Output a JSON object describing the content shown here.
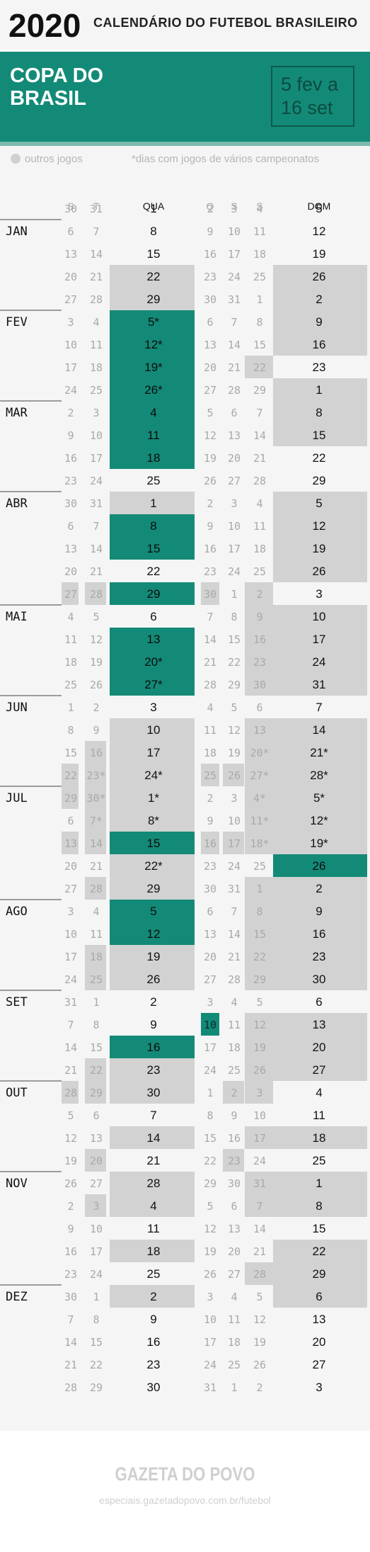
{
  "header": {
    "year": "2020",
    "subtitle": "CALENDÁRIO DO FUTEBOL BRASILEIRO"
  },
  "competition": {
    "name_line1": "COPA DO",
    "name_line2": "BRASIL",
    "dates_line1": "5 fev a",
    "dates_line2": "16 set"
  },
  "legend": {
    "other_games": "outros jogos",
    "note": "*dias com jogos de vários campeonatos"
  },
  "colors": {
    "highlight": "#138a77",
    "other": "#d2d2d2",
    "background": "#f5f5f5",
    "text": "#111111",
    "muted": "#a9a9a9"
  },
  "day_headers": [
    "S",
    "T",
    "QUA",
    "Q",
    "S",
    "S",
    "DOM"
  ],
  "months": [
    {
      "label": "JAN",
      "row": 1
    },
    {
      "label": "FEV",
      "row": 5
    },
    {
      "label": "MAR",
      "row": 9
    },
    {
      "label": "ABR",
      "row": 13
    },
    {
      "label": "MAI",
      "row": 18
    },
    {
      "label": "JUN",
      "row": 22
    },
    {
      "label": "JUL",
      "row": 26
    },
    {
      "label": "AGO",
      "row": 31
    },
    {
      "label": "SET",
      "row": 35
    },
    {
      "label": "OUT",
      "row": 39
    },
    {
      "label": "NOV",
      "row": 43
    },
    {
      "label": "DEZ",
      "row": 48
    }
  ],
  "weeks": [
    {
      "days": [
        "30",
        "31",
        "1",
        "2",
        "3",
        "4",
        "5"
      ],
      "marks": [
        "",
        "",
        "",
        "",
        "",
        "",
        ""
      ]
    },
    {
      "days": [
        "6",
        "7",
        "8",
        "9",
        "10",
        "11",
        "12"
      ],
      "marks": [
        "",
        "",
        "",
        "",
        "",
        "",
        ""
      ]
    },
    {
      "days": [
        "13",
        "14",
        "15",
        "16",
        "17",
        "18",
        "19"
      ],
      "marks": [
        "",
        "",
        "",
        "",
        "",
        "",
        ""
      ]
    },
    {
      "days": [
        "20",
        "21",
        "22",
        "23",
        "24",
        "25",
        "26"
      ],
      "marks": [
        "",
        "",
        "o",
        "",
        "",
        "",
        "o"
      ]
    },
    {
      "days": [
        "27",
        "28",
        "29",
        "30",
        "31",
        "1",
        "2"
      ],
      "marks": [
        "",
        "",
        "o",
        "",
        "",
        "",
        "o"
      ]
    },
    {
      "days": [
        "3",
        "4",
        "5*",
        "6",
        "7",
        "8",
        "9"
      ],
      "marks": [
        "",
        "",
        "c",
        "",
        "",
        "",
        "o"
      ]
    },
    {
      "days": [
        "10",
        "11",
        "12*",
        "13",
        "14",
        "15",
        "16"
      ],
      "marks": [
        "",
        "",
        "c",
        "",
        "",
        "",
        "o"
      ]
    },
    {
      "days": [
        "17",
        "18",
        "19*",
        "20",
        "21",
        "22",
        "23"
      ],
      "marks": [
        "",
        "",
        "c",
        "",
        "",
        "o",
        ""
      ]
    },
    {
      "days": [
        "24",
        "25",
        "26*",
        "27",
        "28",
        "29",
        "1"
      ],
      "marks": [
        "",
        "",
        "c",
        "",
        "",
        "",
        "o"
      ]
    },
    {
      "days": [
        "2",
        "3",
        "4",
        "5",
        "6",
        "7",
        "8"
      ],
      "marks": [
        "",
        "",
        "c",
        "",
        "",
        "",
        "o"
      ]
    },
    {
      "days": [
        "9",
        "10",
        "11",
        "12",
        "13",
        "14",
        "15"
      ],
      "marks": [
        "",
        "",
        "c",
        "",
        "",
        "",
        "o"
      ]
    },
    {
      "days": [
        "16",
        "17",
        "18",
        "19",
        "20",
        "21",
        "22"
      ],
      "marks": [
        "",
        "",
        "c",
        "",
        "",
        "",
        ""
      ]
    },
    {
      "days": [
        "23",
        "24",
        "25",
        "26",
        "27",
        "28",
        "29"
      ],
      "marks": [
        "",
        "",
        "",
        "",
        "",
        "",
        ""
      ]
    },
    {
      "days": [
        "30",
        "31",
        "1",
        "2",
        "3",
        "4",
        "5"
      ],
      "marks": [
        "",
        "",
        "o",
        "",
        "",
        "",
        "o"
      ]
    },
    {
      "days": [
        "6",
        "7",
        "8",
        "9",
        "10",
        "11",
        "12"
      ],
      "marks": [
        "",
        "",
        "c",
        "",
        "",
        "",
        "o"
      ]
    },
    {
      "days": [
        "13",
        "14",
        "15",
        "16",
        "17",
        "18",
        "19"
      ],
      "marks": [
        "",
        "",
        "c",
        "",
        "",
        "",
        "o"
      ]
    },
    {
      "days": [
        "20",
        "21",
        "22",
        "23",
        "24",
        "25",
        "26"
      ],
      "marks": [
        "",
        "",
        "",
        "",
        "",
        "",
        "o"
      ]
    },
    {
      "days": [
        "27",
        "28",
        "29",
        "30",
        "1",
        "2",
        "3"
      ],
      "marks": [
        "o",
        "o",
        "c",
        "o",
        "",
        "o",
        ""
      ]
    },
    {
      "days": [
        "4",
        "5",
        "6",
        "7",
        "8",
        "9",
        "10"
      ],
      "marks": [
        "",
        "",
        "",
        "",
        "",
        "o",
        "o"
      ]
    },
    {
      "days": [
        "11",
        "12",
        "13",
        "14",
        "15",
        "16",
        "17"
      ],
      "marks": [
        "",
        "",
        "c",
        "",
        "",
        "o",
        "o"
      ]
    },
    {
      "days": [
        "18",
        "19",
        "20*",
        "21",
        "22",
        "23",
        "24"
      ],
      "marks": [
        "",
        "",
        "c",
        "",
        "",
        "o",
        "o"
      ]
    },
    {
      "days": [
        "25",
        "26",
        "27*",
        "28",
        "29",
        "30",
        "31"
      ],
      "marks": [
        "",
        "",
        "c",
        "",
        "",
        "o",
        "o"
      ]
    },
    {
      "days": [
        "1",
        "2",
        "3",
        "4",
        "5",
        "6",
        "7"
      ],
      "marks": [
        "",
        "",
        "",
        "",
        "",
        "",
        ""
      ]
    },
    {
      "days": [
        "8",
        "9",
        "10",
        "11",
        "12",
        "13",
        "14"
      ],
      "marks": [
        "",
        "",
        "o",
        "",
        "",
        "o",
        "o"
      ]
    },
    {
      "days": [
        "15",
        "16",
        "17",
        "18",
        "19",
        "20*",
        "21*"
      ],
      "marks": [
        "",
        "o",
        "o",
        "",
        "",
        "o",
        "o"
      ]
    },
    {
      "days": [
        "22",
        "23*",
        "24*",
        "25",
        "26",
        "27*",
        "28*"
      ],
      "marks": [
        "o",
        "o",
        "o",
        "o",
        "o",
        "o",
        "o"
      ]
    },
    {
      "days": [
        "29",
        "30*",
        "1*",
        "2",
        "3",
        "4*",
        "5*"
      ],
      "marks": [
        "o",
        "o",
        "o",
        "",
        "",
        "o",
        "o"
      ]
    },
    {
      "days": [
        "6",
        "7*",
        "8*",
        "9",
        "10",
        "11*",
        "12*"
      ],
      "marks": [
        "",
        "o",
        "o",
        "",
        "",
        "o",
        "o"
      ]
    },
    {
      "days": [
        "13",
        "14",
        "15",
        "16",
        "17",
        "18*",
        "19*"
      ],
      "marks": [
        "o",
        "o",
        "c",
        "o",
        "o",
        "o",
        "o"
      ]
    },
    {
      "days": [
        "20",
        "21",
        "22*",
        "23",
        "24",
        "25",
        "26"
      ],
      "marks": [
        "",
        "",
        "o",
        "",
        "",
        "",
        "c"
      ]
    },
    {
      "days": [
        "27",
        "28",
        "29",
        "30",
        "31",
        "1",
        "2"
      ],
      "marks": [
        "",
        "o",
        "o",
        "",
        "",
        "o",
        "o"
      ]
    },
    {
      "days": [
        "3",
        "4",
        "5",
        "6",
        "7",
        "8",
        "9"
      ],
      "marks": [
        "",
        "",
        "c",
        "",
        "",
        "o",
        "o"
      ]
    },
    {
      "days": [
        "10",
        "11",
        "12",
        "13",
        "14",
        "15",
        "16"
      ],
      "marks": [
        "",
        "",
        "c",
        "",
        "",
        "o",
        "o"
      ]
    },
    {
      "days": [
        "17",
        "18",
        "19",
        "20",
        "21",
        "22",
        "23"
      ],
      "marks": [
        "",
        "o",
        "o",
        "",
        "",
        "o",
        "o"
      ]
    },
    {
      "days": [
        "24",
        "25",
        "26",
        "27",
        "28",
        "29",
        "30"
      ],
      "marks": [
        "",
        "o",
        "o",
        "",
        "",
        "o",
        "o"
      ]
    },
    {
      "days": [
        "31",
        "1",
        "2",
        "3",
        "4",
        "5",
        "6"
      ],
      "marks": [
        "",
        "",
        "",
        "",
        "",
        "",
        ""
      ]
    },
    {
      "days": [
        "7",
        "8",
        "9",
        "10",
        "11",
        "12",
        "13"
      ],
      "marks": [
        "",
        "",
        "",
        "c",
        "",
        "o",
        "o"
      ]
    },
    {
      "days": [
        "14",
        "15",
        "16",
        "17",
        "18",
        "19",
        "20"
      ],
      "marks": [
        "",
        "",
        "c",
        "",
        "",
        "o",
        "o"
      ]
    },
    {
      "days": [
        "21",
        "22",
        "23",
        "24",
        "25",
        "26",
        "27"
      ],
      "marks": [
        "",
        "o",
        "o",
        "",
        "",
        "o",
        "o"
      ]
    },
    {
      "days": [
        "28",
        "29",
        "30",
        "1",
        "2",
        "3",
        "4"
      ],
      "marks": [
        "o",
        "o",
        "o",
        "",
        "o",
        "o",
        ""
      ]
    },
    {
      "days": [
        "5",
        "6",
        "7",
        "8",
        "9",
        "10",
        "11"
      ],
      "marks": [
        "",
        "",
        "",
        "",
        "",
        "",
        ""
      ]
    },
    {
      "days": [
        "12",
        "13",
        "14",
        "15",
        "16",
        "17",
        "18"
      ],
      "marks": [
        "",
        "",
        "o",
        "",
        "",
        "o",
        "o"
      ]
    },
    {
      "days": [
        "19",
        "20",
        "21",
        "22",
        "23",
        "24",
        "25"
      ],
      "marks": [
        "",
        "o",
        "",
        "",
        "o",
        "",
        ""
      ]
    },
    {
      "days": [
        "26",
        "27",
        "28",
        "29",
        "30",
        "31",
        "1"
      ],
      "marks": [
        "",
        "",
        "o",
        "",
        "",
        "o",
        "o"
      ]
    },
    {
      "days": [
        "2",
        "3",
        "4",
        "5",
        "6",
        "7",
        "8"
      ],
      "marks": [
        "",
        "o",
        "o",
        "",
        "",
        "o",
        "o"
      ]
    },
    {
      "days": [
        "9",
        "10",
        "11",
        "12",
        "13",
        "14",
        "15"
      ],
      "marks": [
        "",
        "",
        "",
        "",
        "",
        "",
        ""
      ]
    },
    {
      "days": [
        "16",
        "17",
        "18",
        "19",
        "20",
        "21",
        "22"
      ],
      "marks": [
        "",
        "",
        "o",
        "",
        "",
        "",
        "o"
      ]
    },
    {
      "days": [
        "23",
        "24",
        "25",
        "26",
        "27",
        "28",
        "29"
      ],
      "marks": [
        "",
        "",
        "",
        "",
        "",
        "o",
        "o"
      ]
    },
    {
      "days": [
        "30",
        "1",
        "2",
        "3",
        "4",
        "5",
        "6"
      ],
      "marks": [
        "",
        "",
        "o",
        "",
        "",
        "",
        "o"
      ]
    },
    {
      "days": [
        "7",
        "8",
        "9",
        "10",
        "11",
        "12",
        "13"
      ],
      "marks": [
        "",
        "",
        "",
        "",
        "",
        "",
        ""
      ]
    },
    {
      "days": [
        "14",
        "15",
        "16",
        "17",
        "18",
        "19",
        "20"
      ],
      "marks": [
        "",
        "",
        "",
        "",
        "",
        "",
        ""
      ]
    },
    {
      "days": [
        "21",
        "22",
        "23",
        "24",
        "25",
        "26",
        "27"
      ],
      "marks": [
        "",
        "",
        "",
        "",
        "",
        "",
        ""
      ]
    },
    {
      "days": [
        "28",
        "29",
        "30",
        "31",
        "1",
        "2",
        "3"
      ],
      "marks": [
        "",
        "",
        "",
        "",
        "",
        "",
        ""
      ]
    }
  ],
  "footer": {
    "logo": "GAZETA DO POVO",
    "url": "especiais.gazetadopovo.com.br/futebol"
  }
}
